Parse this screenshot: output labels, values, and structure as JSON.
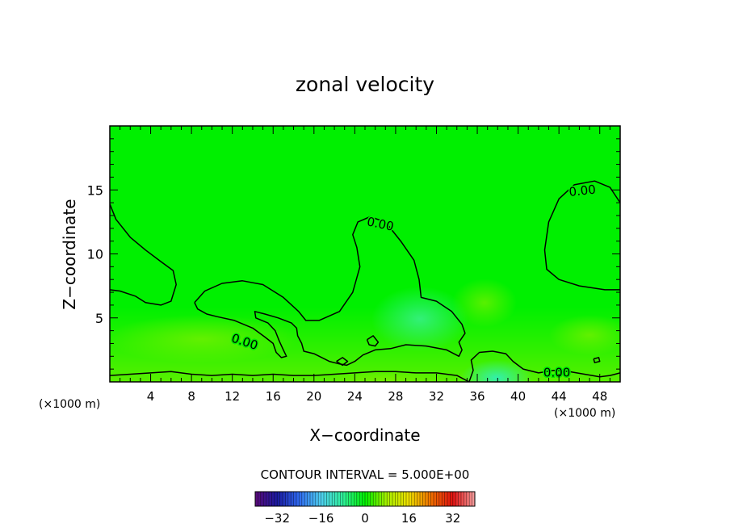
{
  "chart_data": {
    "type": "heatmap",
    "title": "zonal velocity",
    "xlabel": "X−coordinate",
    "ylabel": "Z−coordinate",
    "x_unit_left": "(×1000 m)",
    "x_unit_right": "(×1000 m)",
    "xlim": [
      0,
      50
    ],
    "ylim": [
      0,
      20
    ],
    "x_ticks": [
      4,
      8,
      12,
      16,
      20,
      24,
      28,
      32,
      36,
      40,
      44,
      48
    ],
    "y_ticks": [
      5,
      10,
      15
    ],
    "contour_label": "0.00",
    "contour_level": 0.0,
    "contour_interval_text": "CONTOUR INTERVAL = 5.000E+00",
    "colorbar": {
      "range": [
        -40,
        40
      ],
      "ticks": [
        -32,
        -16,
        0,
        16,
        32
      ],
      "tick_labels": [
        "−32",
        "−16",
        "0",
        "16",
        "32"
      ],
      "colormap": [
        "#5a0a78",
        "#1a1aa0",
        "#2f6af0",
        "#4fd0f0",
        "#2ff09a",
        "#00f000",
        "#a8f000",
        "#f0e000",
        "#f07000",
        "#e01010",
        "#f4a0a0"
      ]
    },
    "background_color": "#00f000",
    "contours": [
      {
        "id": "left-lobe",
        "points": [
          [
            0,
            13.9
          ],
          [
            0.6,
            12.7
          ],
          [
            2,
            11.3
          ],
          [
            3.5,
            10.3
          ],
          [
            5,
            9.4
          ],
          [
            6.2,
            8.7
          ],
          [
            6.5,
            7.6
          ],
          [
            6,
            6.3
          ],
          [
            5,
            6
          ],
          [
            3.5,
            6.2
          ],
          [
            2.5,
            6.7
          ],
          [
            1,
            7.1
          ],
          [
            0,
            7.2
          ]
        ]
      },
      {
        "id": "central-tongue",
        "points": [
          [
            8.3,
            6.2
          ],
          [
            9.3,
            7.1
          ],
          [
            11,
            7.7
          ],
          [
            13,
            7.9
          ],
          [
            15,
            7.6
          ],
          [
            17,
            6.6
          ],
          [
            18.5,
            5.5
          ],
          [
            19.2,
            4.8
          ],
          [
            20.5,
            4.8
          ],
          [
            22.5,
            5.5
          ],
          [
            23.8,
            7
          ],
          [
            24.5,
            9
          ],
          [
            24.2,
            10.5
          ],
          [
            23.8,
            11.5
          ],
          [
            24.3,
            12.5
          ],
          [
            25.5,
            12.9
          ],
          [
            27,
            12.5
          ],
          [
            28.5,
            11
          ],
          [
            29.8,
            9.5
          ],
          [
            30.3,
            8
          ],
          [
            30.5,
            6.6
          ],
          [
            32,
            6.3
          ],
          [
            33.5,
            5.5
          ],
          [
            34.5,
            4.5
          ],
          [
            34.8,
            3.8
          ],
          [
            34.2,
            3.1
          ],
          [
            34.5,
            2.5
          ],
          [
            34.2,
            2
          ],
          [
            33,
            2.5
          ],
          [
            31,
            2.8
          ],
          [
            29,
            2.9
          ],
          [
            27.5,
            2.6
          ],
          [
            26,
            2.5
          ],
          [
            24.8,
            2.1
          ],
          [
            24,
            1.6
          ],
          [
            23.2,
            1.3
          ],
          [
            22.5,
            1.4
          ],
          [
            21.5,
            1.6
          ],
          [
            20,
            2.2
          ],
          [
            19,
            2.4
          ],
          [
            18.8,
            3
          ],
          [
            18.4,
            3.6
          ],
          [
            18.3,
            4.2
          ],
          [
            17.8,
            4.6
          ],
          [
            16.5,
            5
          ],
          [
            15.2,
            5.3
          ],
          [
            14.2,
            5.5
          ],
          [
            14.3,
            5
          ],
          [
            15.5,
            4.6
          ],
          [
            16.2,
            4
          ],
          [
            16.6,
            3.2
          ],
          [
            17,
            2.5
          ],
          [
            17.3,
            2
          ],
          [
            16.8,
            1.9
          ],
          [
            16.3,
            2.3
          ],
          [
            16,
            3
          ],
          [
            15.2,
            3.5
          ],
          [
            14,
            4.2
          ],
          [
            12.2,
            4.8
          ],
          [
            10.5,
            5.1
          ],
          [
            9.5,
            5.3
          ],
          [
            8.6,
            5.7
          ],
          [
            8.3,
            6.2
          ]
        ]
      },
      {
        "id": "small-loop-1",
        "points": [
          [
            25.2,
            3.3
          ],
          [
            25.8,
            3.6
          ],
          [
            26.3,
            3.1
          ],
          [
            26,
            2.8
          ],
          [
            25.4,
            2.9
          ],
          [
            25.2,
            3.3
          ]
        ]
      },
      {
        "id": "small-loop-2",
        "points": [
          [
            22.2,
            1.6
          ],
          [
            22.8,
            1.9
          ],
          [
            23.3,
            1.6
          ],
          [
            22.8,
            1.3
          ],
          [
            22.2,
            1.6
          ]
        ]
      },
      {
        "id": "right-lobe",
        "points": [
          [
            50,
            14
          ],
          [
            49,
            15.2
          ],
          [
            47.5,
            15.7
          ],
          [
            45.5,
            15.4
          ],
          [
            44,
            14.3
          ],
          [
            43,
            12.5
          ],
          [
            42.6,
            10.3
          ],
          [
            42.8,
            8.8
          ],
          [
            44,
            8
          ],
          [
            46,
            7.5
          ],
          [
            48.5,
            7.2
          ],
          [
            50,
            7.2
          ]
        ]
      },
      {
        "id": "right-bottom",
        "points": [
          [
            35.2,
            0
          ],
          [
            35.6,
            0.9
          ],
          [
            35.4,
            1.7
          ],
          [
            36.2,
            2.3
          ],
          [
            37.5,
            2.4
          ],
          [
            38.8,
            2.2
          ],
          [
            39.5,
            1.6
          ],
          [
            40.5,
            1
          ],
          [
            42,
            0.7
          ],
          [
            43.5,
            0.9
          ],
          [
            45,
            0.8
          ],
          [
            46.5,
            0.6
          ],
          [
            48,
            0.4
          ],
          [
            49,
            0.5
          ],
          [
            50,
            0.7
          ]
        ]
      },
      {
        "id": "small-loop-3",
        "points": [
          [
            47.4,
            1.8
          ],
          [
            47.9,
            1.9
          ],
          [
            48,
            1.6
          ],
          [
            47.5,
            1.5
          ],
          [
            47.4,
            1.8
          ]
        ]
      },
      {
        "id": "bottom-line",
        "points": [
          [
            0,
            0.5
          ],
          [
            2,
            0.6
          ],
          [
            4,
            0.7
          ],
          [
            6,
            0.8
          ],
          [
            8,
            0.6
          ],
          [
            10,
            0.5
          ],
          [
            12,
            0.6
          ],
          [
            14,
            0.5
          ],
          [
            16,
            0.6
          ],
          [
            18,
            0.5
          ],
          [
            20,
            0.5
          ],
          [
            22,
            0.6
          ],
          [
            24,
            0.7
          ],
          [
            26,
            0.8
          ],
          [
            28,
            0.8
          ],
          [
            30,
            0.7
          ],
          [
            32,
            0.7
          ],
          [
            34,
            0.5
          ],
          [
            35.2,
            0
          ]
        ]
      }
    ],
    "label_positions": [
      {
        "x": 26.5,
        "y": 12.3,
        "angle": 12
      },
      {
        "x": 13.2,
        "y": 3.1,
        "angle": 18
      },
      {
        "x": 46.3,
        "y": 14.9,
        "angle": -6
      },
      {
        "x": 43.8,
        "y": 0.7,
        "angle": 0
      }
    ]
  }
}
